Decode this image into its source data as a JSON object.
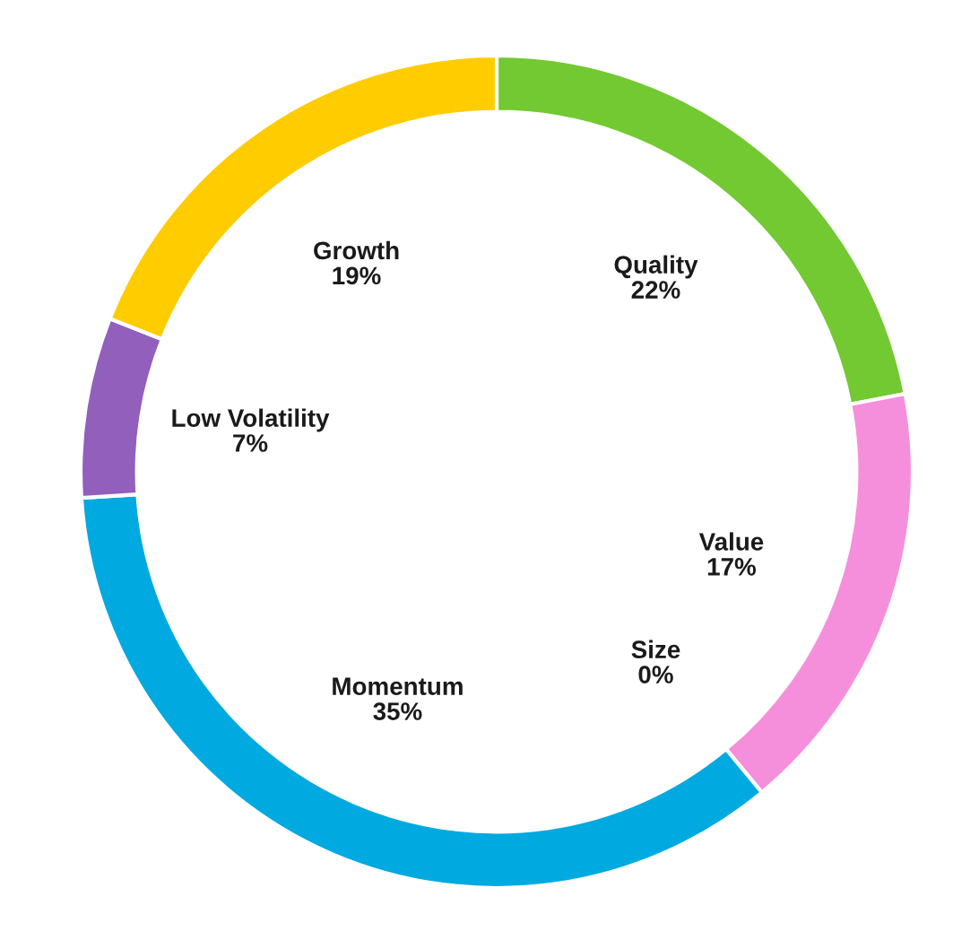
{
  "chart_data": {
    "type": "donut",
    "categories": [
      "Quality",
      "Value",
      "Size",
      "Momentum",
      "Low Volatility",
      "Growth"
    ],
    "values": [
      22,
      17,
      0,
      35,
      7,
      19
    ],
    "value_labels": [
      "22%",
      "17%",
      "0%",
      "35%",
      "7%",
      "19%"
    ],
    "colors": [
      "#72c931",
      "#f58fdc",
      null,
      "#00a9e0",
      "#925fbd",
      "#ffcc00"
    ],
    "legend": false
  }
}
